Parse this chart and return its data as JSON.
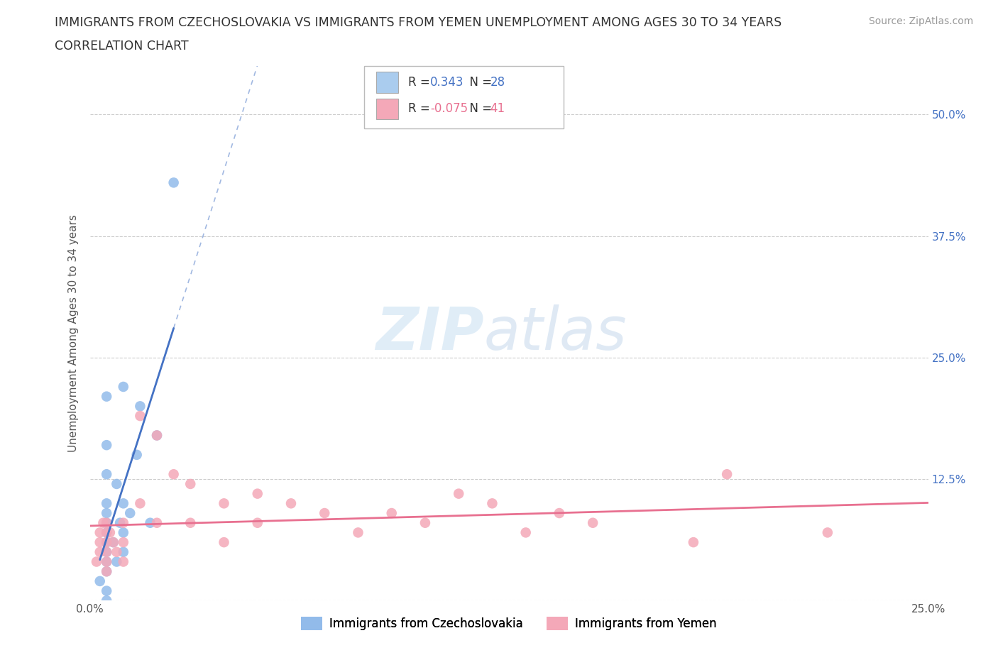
{
  "title_line1": "IMMIGRANTS FROM CZECHOSLOVAKIA VS IMMIGRANTS FROM YEMEN UNEMPLOYMENT AMONG AGES 30 TO 34 YEARS",
  "title_line2": "CORRELATION CHART",
  "source": "Source: ZipAtlas.com",
  "ylabel": "Unemployment Among Ages 30 to 34 years",
  "xlim": [
    0.0,
    0.25
  ],
  "ylim": [
    0.0,
    0.55
  ],
  "r_czech": 0.343,
  "n_czech": 28,
  "r_yemen": -0.075,
  "n_yemen": 41,
  "color_czech": "#92BBEA",
  "color_czech_line": "#4472C4",
  "color_yemen": "#F4A8B8",
  "color_yemen_line": "#E87090",
  "legend_box_color_czech": "#AACCEE",
  "legend_box_color_yemen": "#F4A8B8",
  "watermark_zip": "ZIP",
  "watermark_atlas": "atlas",
  "czech_x": [
    0.003,
    0.005,
    0.005,
    0.005,
    0.005,
    0.005,
    0.005,
    0.005,
    0.005,
    0.005,
    0.005,
    0.005,
    0.005,
    0.005,
    0.007,
    0.008,
    0.008,
    0.009,
    0.01,
    0.01,
    0.01,
    0.01,
    0.012,
    0.014,
    0.015,
    0.018,
    0.02,
    0.025
  ],
  "czech_y": [
    0.02,
    0.0,
    0.01,
    0.03,
    0.04,
    0.05,
    0.06,
    0.07,
    0.08,
    0.09,
    0.1,
    0.13,
    0.16,
    0.21,
    0.06,
    0.04,
    0.12,
    0.08,
    0.05,
    0.07,
    0.1,
    0.22,
    0.09,
    0.15,
    0.2,
    0.08,
    0.17,
    0.43
  ],
  "yemen_x": [
    0.002,
    0.003,
    0.003,
    0.003,
    0.004,
    0.005,
    0.005,
    0.005,
    0.005,
    0.005,
    0.005,
    0.006,
    0.007,
    0.008,
    0.01,
    0.01,
    0.01,
    0.015,
    0.015,
    0.02,
    0.02,
    0.025,
    0.03,
    0.03,
    0.04,
    0.04,
    0.05,
    0.05,
    0.06,
    0.07,
    0.08,
    0.09,
    0.1,
    0.11,
    0.12,
    0.13,
    0.14,
    0.15,
    0.18,
    0.19,
    0.22
  ],
  "yemen_y": [
    0.04,
    0.05,
    0.06,
    0.07,
    0.08,
    0.03,
    0.04,
    0.05,
    0.06,
    0.07,
    0.08,
    0.07,
    0.06,
    0.05,
    0.04,
    0.06,
    0.08,
    0.1,
    0.19,
    0.08,
    0.17,
    0.13,
    0.08,
    0.12,
    0.06,
    0.1,
    0.08,
    0.11,
    0.1,
    0.09,
    0.07,
    0.09,
    0.08,
    0.11,
    0.1,
    0.07,
    0.09,
    0.08,
    0.06,
    0.13,
    0.07
  ],
  "background_color": "#FFFFFF",
  "grid_color": "#CCCCCC",
  "title_color": "#333333",
  "axis_label_color": "#555555",
  "tick_label_color_right": "#4472C4",
  "ytick_positions": [
    0.0,
    0.125,
    0.25,
    0.375,
    0.5
  ],
  "right_ytick_labels": [
    "",
    "12.5%",
    "25.0%",
    "37.5%",
    "50.0%"
  ]
}
